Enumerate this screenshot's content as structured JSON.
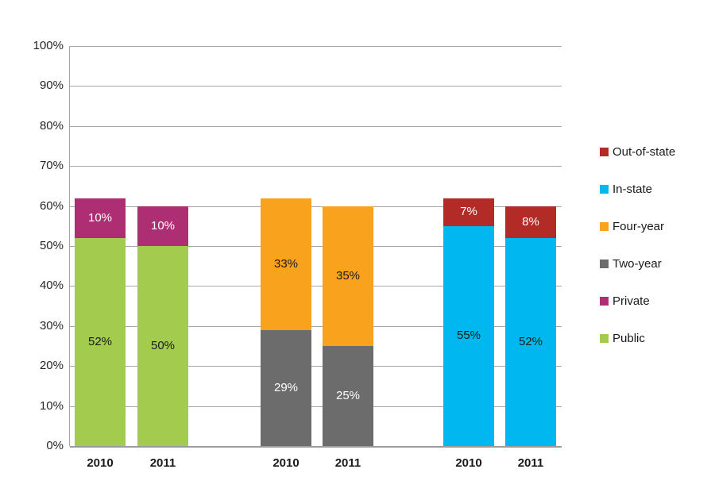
{
  "chart_data": {
    "type": "bar",
    "subtype": "stacked-column",
    "title": "",
    "xlabel": "",
    "ylabel": "",
    "y_axis": {
      "min": 0,
      "max": 100,
      "step": 10,
      "tick_labels": [
        "100%",
        "90%",
        "80%",
        "70%",
        "60%",
        "50%",
        "40%",
        "30%",
        "20%",
        "10%",
        "0%"
      ],
      "grid": true
    },
    "colors": {
      "gridline": "#A6A6A6",
      "axis_line": "#9B9B9B",
      "tick_text": "#262626",
      "dark_label": "#1a1a1a",
      "light_label": "#ffffff"
    },
    "series": [
      {
        "name": "Public",
        "color": "#A3CB4E",
        "label_color": "#1a1a1a"
      },
      {
        "name": "Private",
        "color": "#AE2E74",
        "label_color": "#ffffff"
      },
      {
        "name": "Two-year",
        "color": "#6C6C6C",
        "label_color": "#ffffff"
      },
      {
        "name": "Four-year",
        "color": "#F9A21E",
        "label_color": "#1a1a1a"
      },
      {
        "name": "In-state",
        "color": "#00B7F0",
        "label_color": "#1a1a1a"
      },
      {
        "name": "Out-of-state",
        "color": "#B32B26",
        "label_color": "#ffffff"
      }
    ],
    "bars": [
      {
        "x_label": "2010",
        "segments": [
          {
            "series": "Public",
            "value": 52,
            "label": "52%"
          },
          {
            "series": "Private",
            "value": 10,
            "label": "10%"
          }
        ]
      },
      {
        "x_label": "2011",
        "segments": [
          {
            "series": "Public",
            "value": 50,
            "label": "50%"
          },
          {
            "series": "Private",
            "value": 10,
            "label": "10%"
          }
        ]
      },
      {
        "x_label": "2010",
        "segments": [
          {
            "series": "Two-year",
            "value": 29,
            "label": "29%"
          },
          {
            "series": "Four-year",
            "value": 33,
            "label": "33%"
          }
        ]
      },
      {
        "x_label": "2011",
        "segments": [
          {
            "series": "Two-year",
            "value": 25,
            "label": "25%"
          },
          {
            "series": "Four-year",
            "value": 35,
            "label": "35%"
          }
        ]
      },
      {
        "x_label": "2010",
        "segments": [
          {
            "series": "In-state",
            "value": 55,
            "label": "55%"
          },
          {
            "series": "Out-of-state",
            "value": 7,
            "label": "7%"
          }
        ]
      },
      {
        "x_label": "2011",
        "segments": [
          {
            "series": "In-state",
            "value": 52,
            "label": "52%"
          },
          {
            "series": "Out-of-state",
            "value": 8,
            "label": "8%"
          }
        ]
      }
    ],
    "legend": {
      "position": "right",
      "items": [
        "Out-of-state",
        "In-state",
        "Four-year",
        "Two-year",
        "Private",
        "Public"
      ]
    }
  }
}
